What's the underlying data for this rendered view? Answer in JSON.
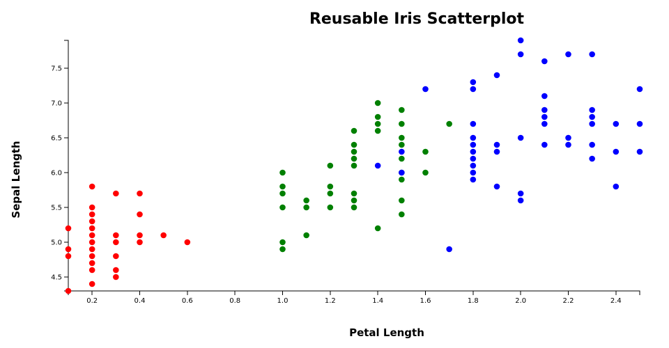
{
  "chart_data": {
    "type": "scatter",
    "title": "Reusable Iris Scatterplot",
    "xlabel": "Petal Length",
    "ylabel": "Sepal Length",
    "xlim": [
      0.1,
      2.5
    ],
    "ylim": [
      4.3,
      7.9
    ],
    "x_ticks": [
      "0.2",
      "0.4",
      "0.6",
      "0.8",
      "1.0",
      "1.2",
      "1.4",
      "1.6",
      "1.8",
      "2.0",
      "2.2",
      "2.4"
    ],
    "y_ticks": [
      "4.5",
      "5.0",
      "5.5",
      "6.0",
      "6.5",
      "7.0",
      "7.5"
    ],
    "legend": "none",
    "grid": false,
    "series": [
      {
        "color": "#ff0000",
        "points": [
          [
            0.1,
            5.2
          ],
          [
            0.1,
            4.9
          ],
          [
            0.1,
            4.8
          ],
          [
            0.1,
            4.3
          ],
          [
            0.2,
            5.8
          ],
          [
            0.2,
            5.5
          ],
          [
            0.2,
            5.4
          ],
          [
            0.2,
            5.3
          ],
          [
            0.2,
            5.2
          ],
          [
            0.2,
            5.1
          ],
          [
            0.2,
            5.0
          ],
          [
            0.2,
            4.9
          ],
          [
            0.2,
            4.8
          ],
          [
            0.2,
            4.7
          ],
          [
            0.2,
            4.6
          ],
          [
            0.2,
            4.4
          ],
          [
            0.3,
            5.7
          ],
          [
            0.3,
            5.1
          ],
          [
            0.3,
            5.0
          ],
          [
            0.3,
            4.8
          ],
          [
            0.3,
            4.6
          ],
          [
            0.3,
            4.5
          ],
          [
            0.4,
            5.7
          ],
          [
            0.4,
            5.4
          ],
          [
            0.4,
            5.1
          ],
          [
            0.4,
            5.0
          ],
          [
            0.5,
            5.1
          ],
          [
            0.6,
            5.0
          ]
        ]
      },
      {
        "color": "#008000",
        "points": [
          [
            1.0,
            6.0
          ],
          [
            1.0,
            5.8
          ],
          [
            1.0,
            5.7
          ],
          [
            1.0,
            5.5
          ],
          [
            1.0,
            5.0
          ],
          [
            1.0,
            4.9
          ],
          [
            1.1,
            5.6
          ],
          [
            1.1,
            5.5
          ],
          [
            1.1,
            5.1
          ],
          [
            1.2,
            6.1
          ],
          [
            1.2,
            5.8
          ],
          [
            1.2,
            5.7
          ],
          [
            1.2,
            5.5
          ],
          [
            1.3,
            6.6
          ],
          [
            1.3,
            6.4
          ],
          [
            1.3,
            6.3
          ],
          [
            1.3,
            6.2
          ],
          [
            1.3,
            6.1
          ],
          [
            1.3,
            5.7
          ],
          [
            1.3,
            5.6
          ],
          [
            1.3,
            5.5
          ],
          [
            1.4,
            7.0
          ],
          [
            1.4,
            6.8
          ],
          [
            1.4,
            6.7
          ],
          [
            1.4,
            6.6
          ],
          [
            1.4,
            5.2
          ],
          [
            1.5,
            6.9
          ],
          [
            1.5,
            6.7
          ],
          [
            1.5,
            6.5
          ],
          [
            1.5,
            6.4
          ],
          [
            1.5,
            6.2
          ],
          [
            1.5,
            6.0
          ],
          [
            1.5,
            5.9
          ],
          [
            1.5,
            5.6
          ],
          [
            1.5,
            5.4
          ],
          [
            1.6,
            6.3
          ],
          [
            1.6,
            6.0
          ],
          [
            1.7,
            6.7
          ]
        ]
      },
      {
        "color": "#0000ff",
        "points": [
          [
            1.4,
            6.1
          ],
          [
            1.5,
            6.3
          ],
          [
            1.5,
            6.0
          ],
          [
            1.6,
            7.2
          ],
          [
            1.7,
            4.9
          ],
          [
            1.8,
            7.3
          ],
          [
            1.8,
            7.2
          ],
          [
            1.8,
            6.7
          ],
          [
            1.8,
            6.5
          ],
          [
            1.8,
            6.4
          ],
          [
            1.8,
            6.3
          ],
          [
            1.8,
            6.2
          ],
          [
            1.8,
            6.1
          ],
          [
            1.8,
            6.0
          ],
          [
            1.8,
            5.9
          ],
          [
            1.9,
            7.4
          ],
          [
            1.9,
            6.4
          ],
          [
            1.9,
            6.3
          ],
          [
            1.9,
            5.8
          ],
          [
            2.0,
            7.9
          ],
          [
            2.0,
            7.7
          ],
          [
            2.0,
            6.5
          ],
          [
            2.0,
            5.7
          ],
          [
            2.0,
            5.6
          ],
          [
            2.1,
            7.6
          ],
          [
            2.1,
            7.1
          ],
          [
            2.1,
            6.9
          ],
          [
            2.1,
            6.8
          ],
          [
            2.1,
            6.7
          ],
          [
            2.1,
            6.4
          ],
          [
            2.2,
            7.7
          ],
          [
            2.2,
            6.5
          ],
          [
            2.2,
            6.4
          ],
          [
            2.3,
            7.7
          ],
          [
            2.3,
            6.9
          ],
          [
            2.3,
            6.8
          ],
          [
            2.3,
            6.7
          ],
          [
            2.3,
            6.4
          ],
          [
            2.3,
            6.2
          ],
          [
            2.4,
            6.7
          ],
          [
            2.4,
            6.3
          ],
          [
            2.4,
            5.8
          ],
          [
            2.5,
            7.2
          ],
          [
            2.5,
            6.7
          ],
          [
            2.5,
            6.3
          ]
        ]
      }
    ]
  }
}
